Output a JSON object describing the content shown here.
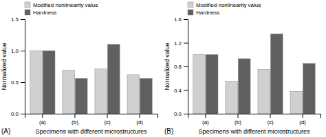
{
  "chart_data": [
    {
      "type": "bar",
      "categories": [
        "(a)",
        "(b)",
        "(c)",
        "(d)"
      ],
      "series": [
        {
          "name": "Modified nonlinearity value",
          "color": "#d0d0d0",
          "values": [
            1.0,
            0.69,
            0.71,
            0.62
          ]
        },
        {
          "name": "Hardness",
          "color": "#606060",
          "values": [
            1.0,
            0.56,
            1.1,
            0.56
          ]
        }
      ],
      "xlabel": "Specimens with different microstructures",
      "ylabel": "Normalized value",
      "ylim": [
        0,
        1.5
      ],
      "yticks": [
        {
          "value": 0,
          "label": "0.0"
        },
        0.5,
        {
          "value": 1,
          "label": "1.0"
        },
        1.5
      ],
      "grid": false,
      "legend": "upper left",
      "annotations": [
        "(A)"
      ]
    },
    {
      "type": "bar",
      "categories": [
        "(a)",
        "(b)",
        "(c)",
        "(d)"
      ],
      "series": [
        {
          "name": "Modified nonlinearity value",
          "color": "#d0d0d0",
          "values": [
            1.0,
            0.55,
            0.75,
            0.38
          ]
        },
        {
          "name": "Hardness",
          "color": "#606060",
          "values": [
            1.0,
            0.93,
            1.35,
            0.85
          ]
        }
      ],
      "xlabel": "Specimens with different microstructures",
      "ylabel": "Normalized value",
      "ylim": [
        0,
        1.6
      ],
      "yticks": [
        {
          "value": 0,
          "label": "0.0"
        },
        0.4,
        0.8,
        1.2,
        1.6
      ],
      "grid": false,
      "legend": "upper left",
      "annotations": [
        "(B)"
      ]
    }
  ]
}
